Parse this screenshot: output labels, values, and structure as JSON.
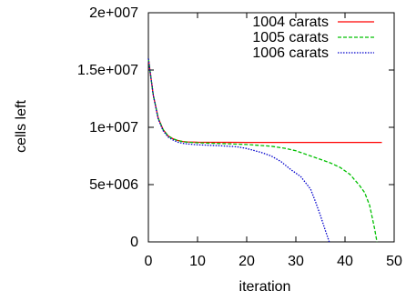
{
  "chart_data": {
    "type": "line",
    "title": "",
    "xlabel": "iteration",
    "ylabel": "cells left",
    "xlim": [
      0,
      50
    ],
    "ylim": [
      0,
      20000000
    ],
    "x_ticks": [
      {
        "value": 0,
        "label": "0"
      },
      {
        "value": 10,
        "label": "10"
      },
      {
        "value": 20,
        "label": "20"
      },
      {
        "value": 30,
        "label": "30"
      },
      {
        "value": 40,
        "label": "40"
      },
      {
        "value": 50,
        "label": "50"
      }
    ],
    "y_ticks": [
      {
        "value": 0,
        "label": "0"
      },
      {
        "value": 5000000,
        "label": "5e+006"
      },
      {
        "value": 10000000,
        "label": "1e+007"
      },
      {
        "value": 15000000,
        "label": "1.5e+007"
      },
      {
        "value": 20000000,
        "label": "2e+007"
      }
    ],
    "legend_position": "top-right",
    "grid": false,
    "series": [
      {
        "name": "1004 carats",
        "color": "#ff0000",
        "dash": "solid",
        "points": [
          [
            0,
            16000000
          ],
          [
            1,
            12800000
          ],
          [
            2,
            10800000
          ],
          [
            3,
            9800000
          ],
          [
            4,
            9250000
          ],
          [
            5,
            9000000
          ],
          [
            6,
            8850000
          ],
          [
            7,
            8760000
          ],
          [
            8,
            8720000
          ],
          [
            10,
            8700000
          ],
          [
            15,
            8690000
          ],
          [
            20,
            8680000
          ],
          [
            30,
            8680000
          ],
          [
            40,
            8680000
          ],
          [
            47.5,
            8680000
          ]
        ]
      },
      {
        "name": "1005 carats",
        "color": "#00c000",
        "dash": "dashed",
        "points": [
          [
            0,
            16000000
          ],
          [
            1,
            12800000
          ],
          [
            2,
            10800000
          ],
          [
            3,
            9800000
          ],
          [
            4,
            9250000
          ],
          [
            5,
            9000000
          ],
          [
            6,
            8850000
          ],
          [
            7,
            8750000
          ],
          [
            8,
            8700000
          ],
          [
            10,
            8650000
          ],
          [
            15,
            8580000
          ],
          [
            20,
            8500000
          ],
          [
            25,
            8350000
          ],
          [
            28,
            8150000
          ],
          [
            30,
            7950000
          ],
          [
            33,
            7500000
          ],
          [
            35,
            7200000
          ],
          [
            37,
            6900000
          ],
          [
            39,
            6500000
          ],
          [
            41,
            5900000
          ],
          [
            42,
            5400000
          ],
          [
            43,
            4900000
          ],
          [
            44,
            4300000
          ],
          [
            45,
            3200000
          ],
          [
            46,
            1200000
          ],
          [
            46.5,
            0
          ]
        ]
      },
      {
        "name": "1006 carats",
        "color": "#0000cc",
        "dash": "dotted",
        "points": [
          [
            0,
            16000000
          ],
          [
            1,
            12800000
          ],
          [
            2,
            10700000
          ],
          [
            3,
            9700000
          ],
          [
            4,
            9150000
          ],
          [
            5,
            8900000
          ],
          [
            6,
            8700000
          ],
          [
            7,
            8600000
          ],
          [
            8,
            8550000
          ],
          [
            10,
            8480000
          ],
          [
            13,
            8420000
          ],
          [
            15,
            8380000
          ],
          [
            18,
            8300000
          ],
          [
            20,
            8150000
          ],
          [
            23,
            7800000
          ],
          [
            25,
            7500000
          ],
          [
            27,
            7000000
          ],
          [
            29,
            6300000
          ],
          [
            31,
            5700000
          ],
          [
            33,
            4600000
          ],
          [
            34,
            3500000
          ],
          [
            35,
            2300000
          ],
          [
            36,
            1000000
          ],
          [
            36.8,
            0
          ]
        ]
      }
    ]
  }
}
